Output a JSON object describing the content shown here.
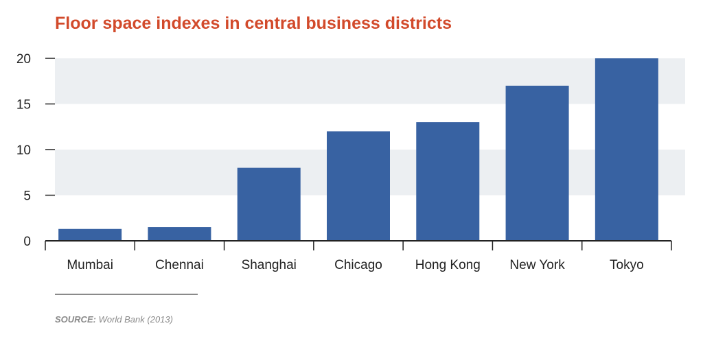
{
  "title": "Floor space indexes in central business districts",
  "source": {
    "label": "SOURCE:",
    "text": "World Bank (2013)"
  },
  "colors": {
    "title": "#d24a2b",
    "bar": "#3862a2",
    "band": "#eceff2",
    "axis": "#222222",
    "source": "#8a8a8a"
  },
  "chart_data": {
    "type": "bar",
    "title": "Floor space indexes in central business districts",
    "xlabel": "",
    "ylabel": "",
    "categories": [
      "Mumbai",
      "Chennai",
      "Shanghai",
      "Chicago",
      "Hong Kong",
      "New York",
      "Tokyo"
    ],
    "values": [
      1.3,
      1.5,
      8,
      12,
      13,
      17,
      20
    ],
    "ylim": [
      0,
      20
    ],
    "yticks": [
      0,
      5,
      10,
      15,
      20
    ],
    "grid": "alternating horizontal bands",
    "legend": "none"
  }
}
